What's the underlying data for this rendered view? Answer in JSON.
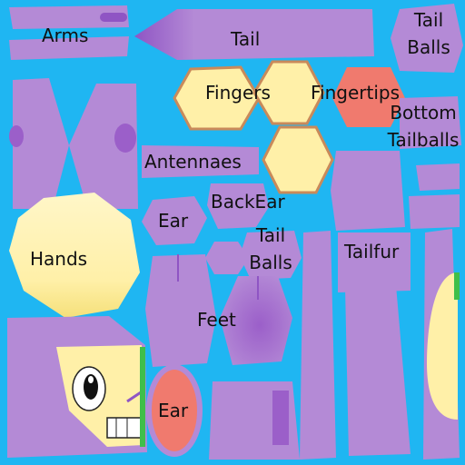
{
  "labels": {
    "arms": "Arms",
    "tail": "Tail",
    "tail_balls_top": [
      "Tail",
      "Balls"
    ],
    "fingers": "Fingers",
    "fingertips": "Fingertips",
    "bottom_tailballs": [
      "Bottom",
      "Tailballs"
    ],
    "antennaes": "Antennaes",
    "backear": "BackEar",
    "ear_upper": "Ear",
    "tail_balls_mid": [
      "Tail",
      "Balls"
    ],
    "tailfur": "Tailfur",
    "hands": "Hands",
    "feet": "Feet",
    "ear_lower": "Ear"
  },
  "colors": {
    "background": "#1fb6f2",
    "purple": "#b48ad6",
    "dark_purple": "#8f55c4",
    "cream": "#fff0a8",
    "salmon": "#f07a6e",
    "outline": "#c98a5a",
    "green": "#3fbf4a"
  }
}
